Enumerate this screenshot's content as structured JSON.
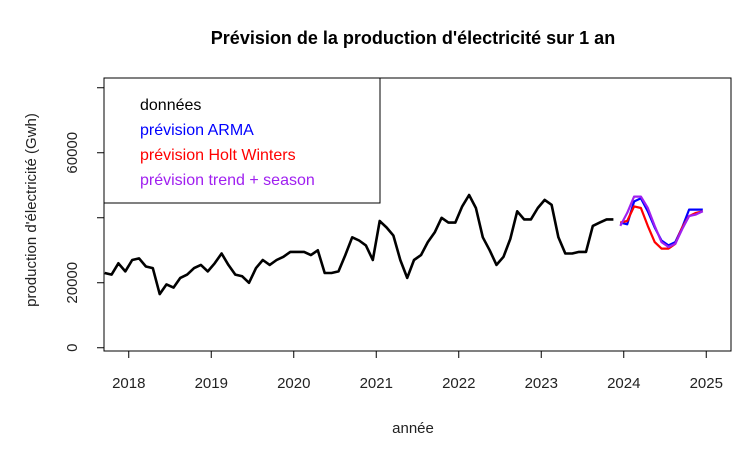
{
  "chart_data": {
    "type": "line",
    "title": "Prévision de la production d'électricité sur 1 an",
    "xlabel": "année",
    "ylabel": "production d'électricité (Gwh)",
    "xlim": [
      2017.7,
      2025.3
    ],
    "ylim": [
      -1000,
      83000
    ],
    "x_ticks": [
      2018,
      2019,
      2020,
      2021,
      2022,
      2023,
      2024,
      2025
    ],
    "y_ticks": [
      0,
      20000,
      40000,
      60000,
      80000
    ],
    "y_tick_labels_shown": [
      "0",
      "20000",
      "60000"
    ],
    "grid": false,
    "legend_position": "top-left",
    "series": [
      {
        "name": "données",
        "color": "#000000",
        "x": [
          2017.708,
          2017.792,
          2017.875,
          2017.958,
          2018.042,
          2018.125,
          2018.208,
          2018.292,
          2018.375,
          2018.458,
          2018.542,
          2018.625,
          2018.708,
          2018.792,
          2018.875,
          2018.958,
          2019.042,
          2019.125,
          2019.208,
          2019.292,
          2019.375,
          2019.458,
          2019.542,
          2019.625,
          2019.708,
          2019.792,
          2019.875,
          2019.958,
          2020.042,
          2020.125,
          2020.208,
          2020.292,
          2020.375,
          2020.458,
          2020.542,
          2020.625,
          2020.708,
          2020.792,
          2020.875,
          2020.958,
          2021.042,
          2021.125,
          2021.208,
          2021.292,
          2021.375,
          2021.458,
          2021.542,
          2021.625,
          2021.708,
          2021.792,
          2021.875,
          2021.958,
          2022.042,
          2022.125,
          2022.208,
          2022.292,
          2022.375,
          2022.458,
          2022.542,
          2022.625,
          2022.708,
          2022.792,
          2022.875,
          2022.958,
          2023.042,
          2023.125,
          2023.208,
          2023.292,
          2023.375,
          2023.458,
          2023.542,
          2023.625,
          2023.708,
          2023.792,
          2023.875
        ],
        "values": [
          23000,
          22500,
          26000,
          23500,
          27000,
          27500,
          25000,
          24500,
          16500,
          19500,
          18500,
          21500,
          22500,
          24500,
          25500,
          23500,
          26000,
          29000,
          25500,
          22500,
          22000,
          20000,
          24500,
          27000,
          25500,
          27000,
          28000,
          29500,
          29500,
          29500,
          28500,
          30000,
          23000,
          23000,
          23500,
          28500,
          34000,
          33000,
          31500,
          27000,
          39000,
          37000,
          34500,
          27000,
          21500,
          27000,
          28500,
          32500,
          35500,
          40000,
          38500,
          38500,
          43500,
          47000,
          43000,
          34000,
          30000,
          25500,
          28000,
          33500,
          42000,
          39500,
          39500,
          43000,
          45500,
          44000,
          34000,
          29000,
          29000,
          29500,
          29500,
          37500,
          38500,
          39500,
          39500
        ]
      },
      {
        "name": "prévision ARMA",
        "color": "#0000ff",
        "x": [
          2023.958,
          2024.042,
          2024.125,
          2024.208,
          2024.292,
          2024.375,
          2024.458,
          2024.542,
          2024.625,
          2024.708,
          2024.792,
          2024.875,
          2024.958
        ],
        "values": [
          38500,
          38000,
          45000,
          46000,
          42000,
          37000,
          33000,
          31500,
          32500,
          37000,
          42500,
          42500,
          42500
        ]
      },
      {
        "name": "prévision Holt Winters",
        "color": "#ff0000",
        "x": [
          2023.958,
          2024.042,
          2024.125,
          2024.208,
          2024.292,
          2024.375,
          2024.458,
          2024.542,
          2024.625,
          2024.708,
          2024.792,
          2024.875,
          2024.958
        ],
        "values": [
          38500,
          39000,
          43500,
          43000,
          37500,
          32500,
          30500,
          30500,
          32000,
          37000,
          40500,
          41500,
          42000
        ]
      },
      {
        "name": "prévision trend + season",
        "color": "#a020f0",
        "x": [
          2023.958,
          2024.042,
          2024.125,
          2024.208,
          2024.292,
          2024.375,
          2024.458,
          2024.542,
          2024.625,
          2024.708,
          2024.792,
          2024.875,
          2024.958
        ],
        "values": [
          37500,
          41500,
          46500,
          46500,
          43000,
          37500,
          32500,
          31000,
          32000,
          36500,
          40500,
          41000,
          42000
        ]
      }
    ]
  }
}
